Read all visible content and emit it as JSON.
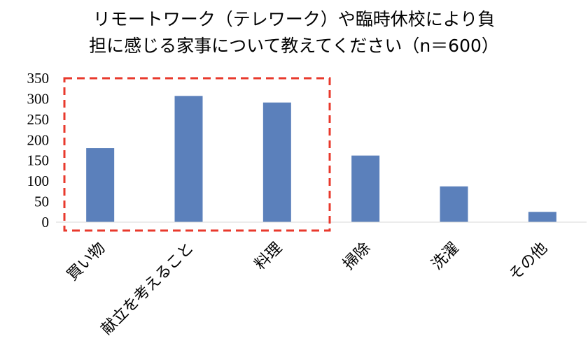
{
  "chart_data": {
    "type": "bar",
    "title_lines": [
      "リモートワーク（テレワーク）や臨時休校により負",
      "担に感じる家事について教えてください（n＝600）"
    ],
    "categories": [
      "買い物",
      "献立を考えること",
      "料理",
      "掃除",
      "洗濯",
      "その他"
    ],
    "values": [
      180,
      307,
      291,
      162,
      87,
      25
    ],
    "ylim": [
      0,
      350
    ],
    "yticks": [
      "0",
      "50",
      "100",
      "150",
      "200",
      "250",
      "300",
      "350"
    ],
    "bar_color": "#5b80bb",
    "highlight_color": "#e8392c",
    "highlighted_categories": [
      "買い物",
      "献立を考えること",
      "料理"
    ],
    "grid": false,
    "legend": "none"
  }
}
